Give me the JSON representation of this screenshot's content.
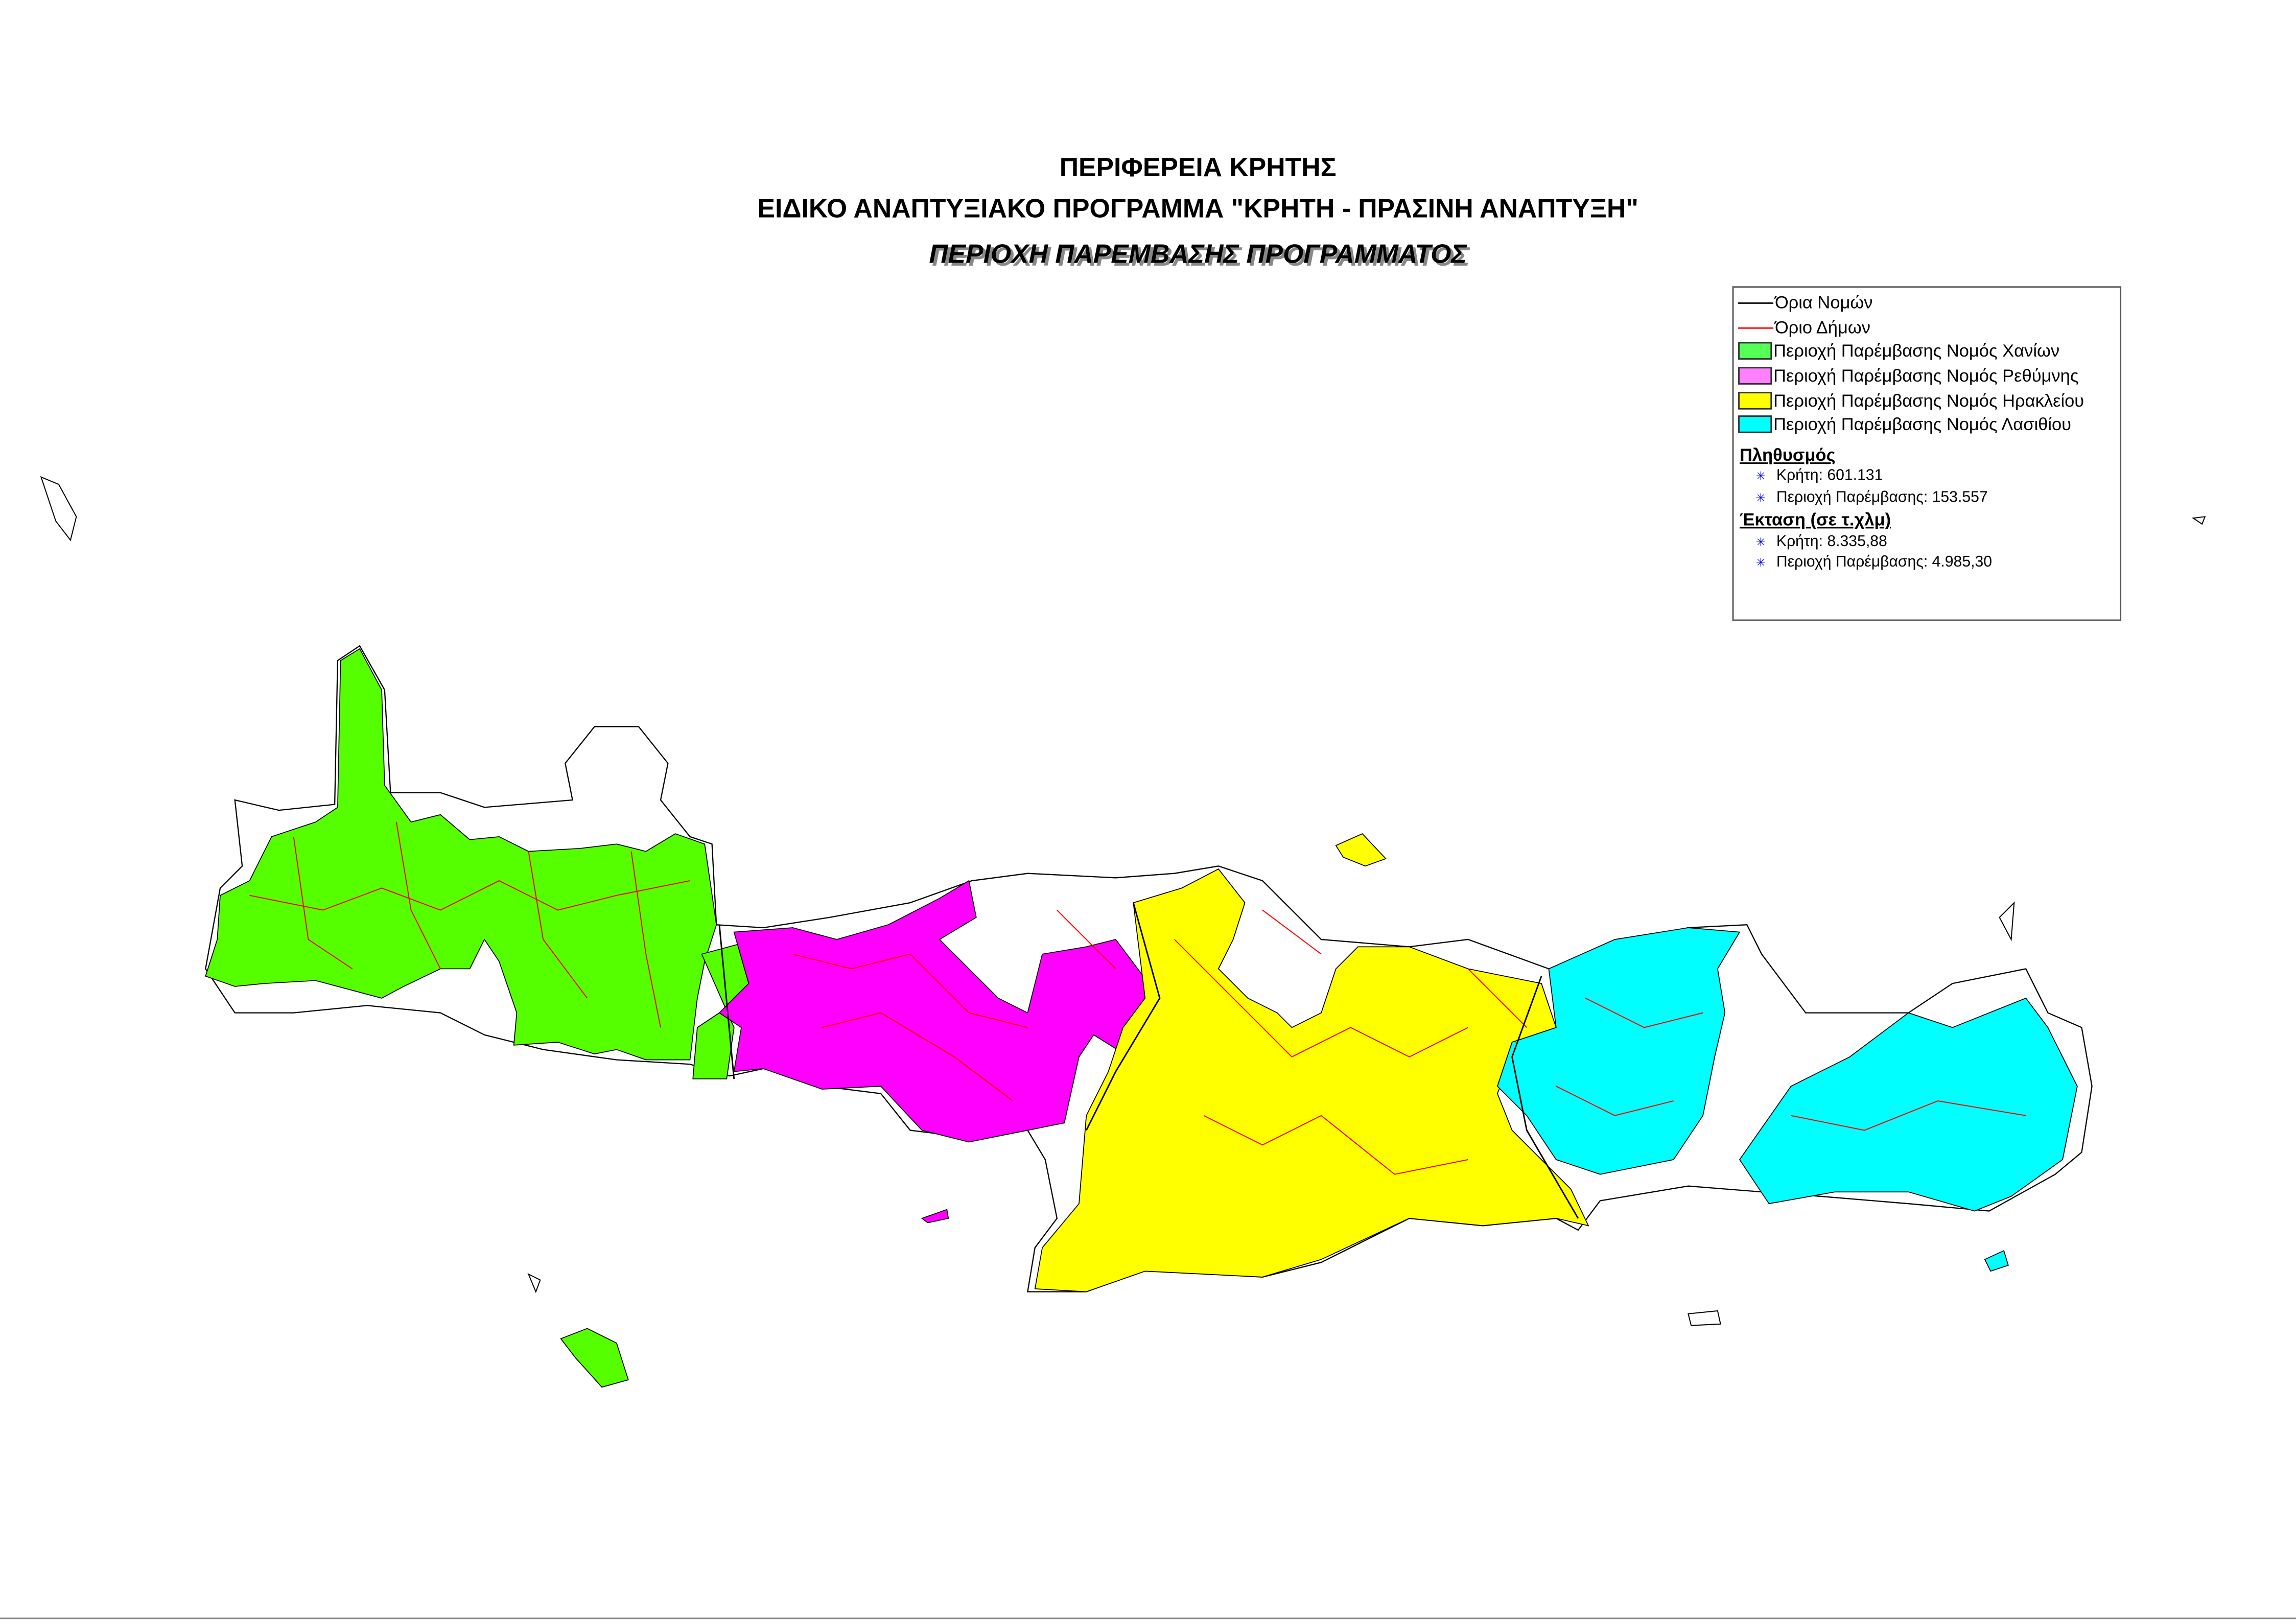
{
  "title": {
    "line1": "ΠΕΡΙΦΕΡΕΙΑ ΚΡΗΤΗΣ",
    "line2": "ΕΙΔΙΚΟ ΑΝΑΠΤΥΞΙΑΚΟ ΠΡΟΓΡΑΜΜΑ \"ΚΡΗΤΗ - ΠΡΑΣΙΝΗ ΑΝΑΠΤΥΞΗ\"",
    "line3": "ΠΕΡΙΟΧΗ ΠΑΡΕΜΒΑΣΗΣ ΠΡΟΓΡΑΜΜΑΤΟΣ"
  },
  "legend": {
    "lines": [
      {
        "label": "Όρια Νομών",
        "color": "#000000"
      },
      {
        "label": "Όριο Δήμων",
        "color": "#ff0000"
      }
    ],
    "areas": [
      {
        "label": "Περιοχή Παρέμβασης Νομός Χανίων",
        "color": "#55ff55"
      },
      {
        "label": "Περιοχή Παρέμβασης Νομός Ρεθύμνης",
        "color": "#ff80ff"
      },
      {
        "label": "Περιοχή Παρέμβασης Νομός Ηρακλείου",
        "color": "#ffff00"
      },
      {
        "label": "Περιοχή Παρέμβασης Νομός Λασιθίου",
        "color": "#00ffff"
      }
    ],
    "population": {
      "heading": "Πληθυσμός",
      "items": [
        "Κρήτη: 601.131",
        "Περιοχή Παρέμβασης: 153.557"
      ]
    },
    "area": {
      "heading": "Έκταση (σε τ.χλμ)",
      "items": [
        "Κρήτη: 8.335,88",
        "Περιοχή Παρέμβασης: 4.985,30"
      ]
    }
  },
  "map_colors": {
    "chania": "#55ff00",
    "rethymno": "#ff00ff",
    "heraklion": "#ffff00",
    "lasithi": "#00ffff",
    "prefecture_border": "#000000",
    "municipality_border": "#ff0000"
  }
}
